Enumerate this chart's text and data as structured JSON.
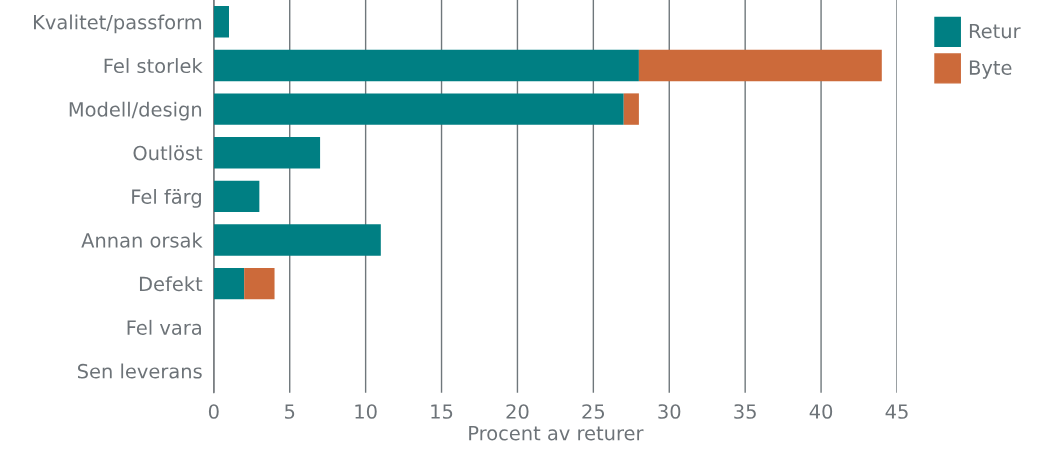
{
  "chart_data": {
    "type": "bar",
    "orientation": "horizontal",
    "stacked": true,
    "xlabel": "Procent av returer",
    "categories": [
      "Kvalitet/passform",
      "Fel storlek",
      "Modell/design",
      "Outlöst",
      "Fel färg",
      "Annan orsak",
      "Defekt",
      "Fel vara",
      "Sen leverans"
    ],
    "series": [
      {
        "name": "Retur",
        "color": "#007f83",
        "values": [
          1,
          28,
          27,
          7,
          3,
          11,
          2,
          0,
          0
        ]
      },
      {
        "name": "Byte",
        "color": "#cc6a3a",
        "values": [
          0,
          16,
          1,
          0,
          0,
          0,
          2,
          0,
          0
        ]
      }
    ],
    "xlim": [
      0,
      45
    ],
    "xticks": [
      0,
      5,
      10,
      15,
      20,
      25,
      30,
      35,
      40,
      45
    ],
    "grid": "x",
    "legend": "top right"
  }
}
